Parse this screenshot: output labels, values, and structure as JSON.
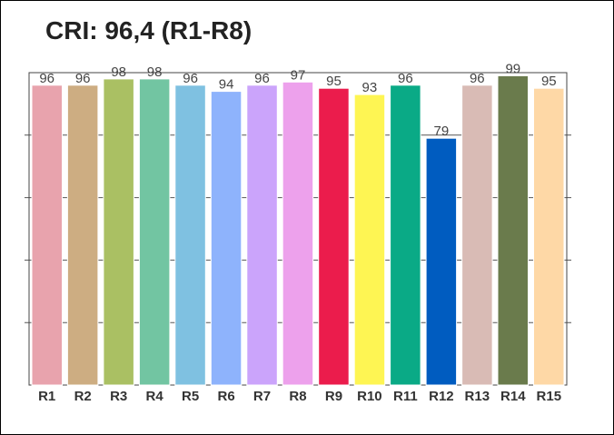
{
  "chart_data": {
    "type": "bar",
    "title": "CRI: 96,4 (R1-R8)",
    "categories": [
      "R1",
      "R2",
      "R3",
      "R4",
      "R5",
      "R6",
      "R7",
      "R8",
      "R9",
      "R10",
      "R11",
      "R12",
      "R13",
      "R14",
      "R15"
    ],
    "values": [
      96,
      96,
      98,
      98,
      96,
      94,
      96,
      97,
      95,
      93,
      96,
      79,
      96,
      99,
      95
    ],
    "colors": [
      "#e8a3ad",
      "#cdad82",
      "#aac063",
      "#72c5a2",
      "#7fc1e1",
      "#8eb3fc",
      "#cba4fb",
      "#eda1ec",
      "#eb1c4c",
      "#fef553",
      "#0aaa86",
      "#005cc0",
      "#d9bbb5",
      "#6a7b4c",
      "#fed8a6"
    ],
    "ylim": [
      0,
      100
    ],
    "grid": true,
    "xlabel": "",
    "ylabel": ""
  }
}
